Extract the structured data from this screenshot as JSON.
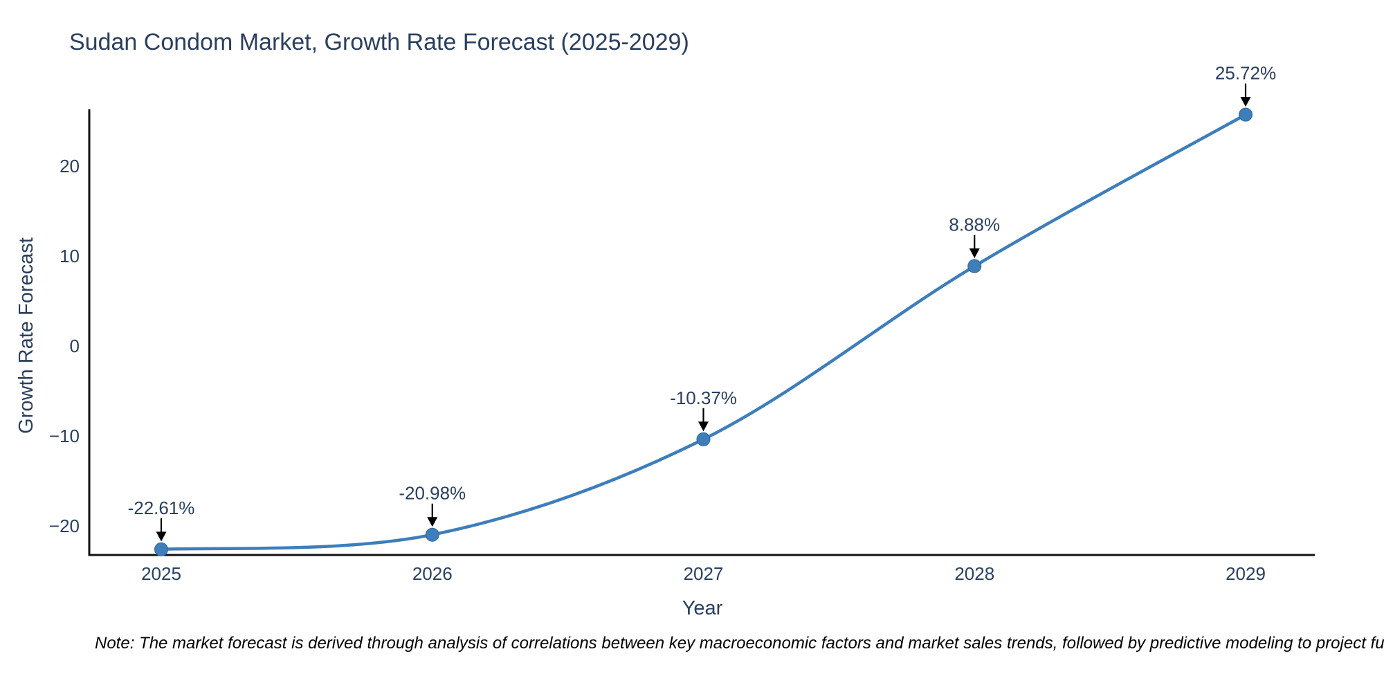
{
  "page": {
    "background": "#ffffff"
  },
  "title": {
    "text": "Sudan Condom Market, Growth Rate Forecast (2025-2029)",
    "color": "#2a3f5f"
  },
  "note": {
    "text": "Note: The market forecast is derived through analysis of correlations between key macroeconomic factors and market sales trends, followed by predictive modeling to project future sales"
  },
  "chart_data": {
    "type": "line",
    "line_shape": "spline",
    "title": "Sudan Condom Market, Growth Rate Forecast (2025-2029)",
    "x": [
      "2025",
      "2026",
      "2027",
      "2028",
      "2029"
    ],
    "series": [
      {
        "name": "Growth Rate Forecast",
        "values": [
          -22.61,
          -20.98,
          -10.37,
          8.88,
          25.72
        ]
      }
    ],
    "point_labels": [
      "-22.61%",
      "-20.98%",
      "-10.37%",
      "8.88%",
      "25.72%"
    ],
    "xlabel": "Year",
    "ylabel": "Growth Rate Forecast",
    "yticks": [
      20,
      10,
      0,
      -10,
      -20
    ],
    "ylim": [
      -23.2,
      26.3
    ],
    "grid": false,
    "legend": false,
    "markers": true,
    "annotations_arrow": "down-arrow",
    "colors": {
      "line": "#3d7ebb",
      "marker": "#3d7ebb",
      "marker_edge": "#2f6699",
      "axis": "#111111",
      "tick_label": "#2a3f5f",
      "annotation_text": "#2a3f5f",
      "arrow": "#000000",
      "title": "#2a3f5f",
      "note": "#000000"
    }
  }
}
